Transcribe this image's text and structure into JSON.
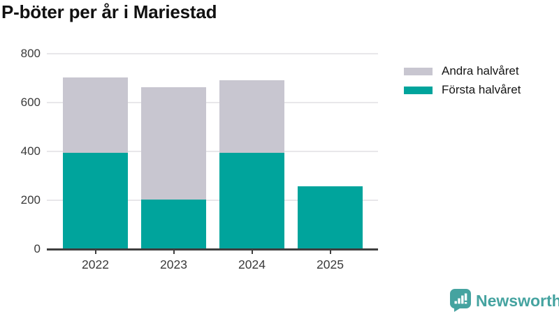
{
  "chart_data": {
    "type": "bar",
    "stacked": true,
    "title": "P-böter per år i Mariestad",
    "categories": [
      "2022",
      "2023",
      "2024",
      "2025"
    ],
    "series": [
      {
        "name": "Andra halvåret",
        "color": "#c8c6d0",
        "values": [
          310,
          461,
          297,
          0
        ]
      },
      {
        "name": "Första halvåret",
        "color": "#00a49c",
        "values": [
          394,
          203,
          394,
          258
        ]
      }
    ],
    "totals": [
      704,
      664,
      691,
      258
    ],
    "xlabel": "",
    "ylabel": "",
    "ylim": [
      0,
      800
    ],
    "yticks": [
      0,
      200,
      400,
      600,
      800
    ],
    "grid": true,
    "legend_position": "top-right",
    "axis_color": "#3f3f3f",
    "gridline_color": "#e8e7ea"
  },
  "brand": {
    "name": "Newsworthy",
    "color": "#45a3a0",
    "icon": "newsworthy-speech-bubble-bar-chart-icon"
  }
}
